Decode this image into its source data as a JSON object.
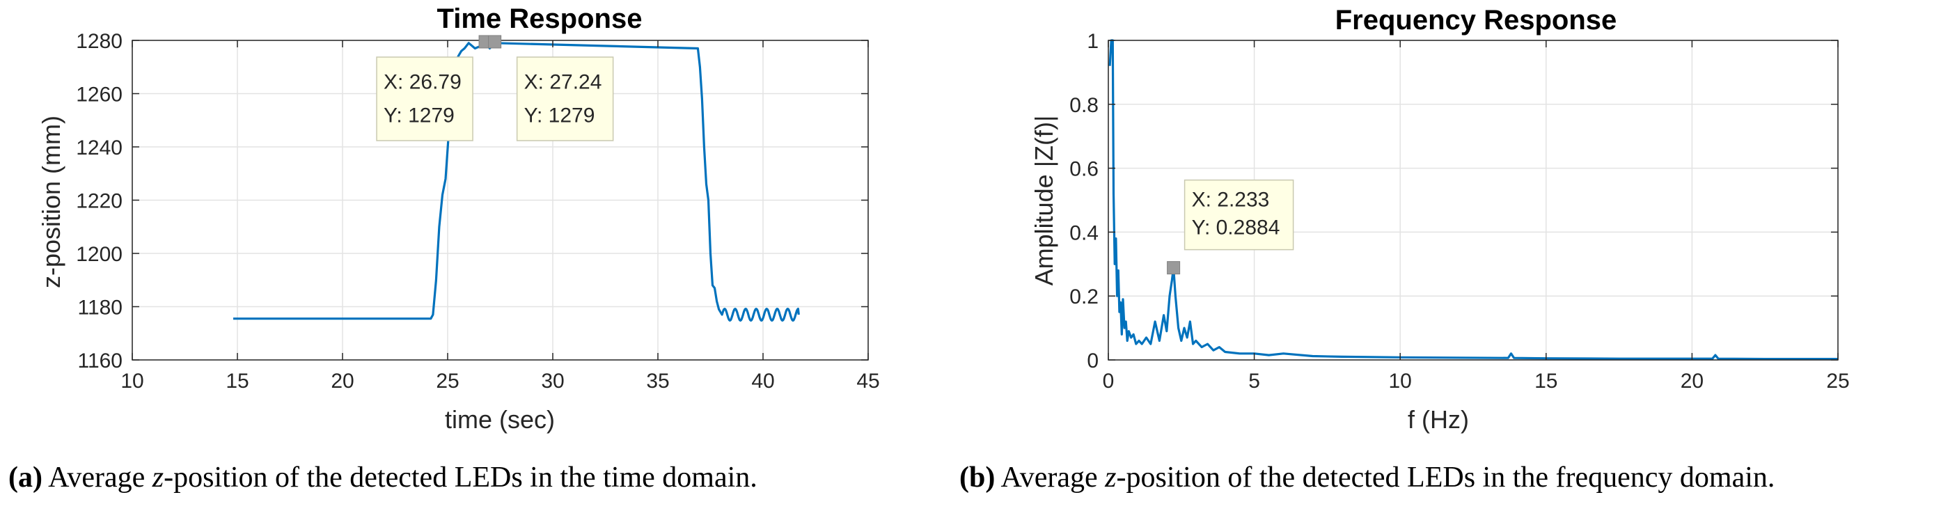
{
  "chart_data": [
    {
      "type": "line",
      "title": "Time Response",
      "xlabel": "time (sec)",
      "ylabel": "z-position (mm)",
      "xlim": [
        10,
        45
      ],
      "ylim": [
        1160,
        1280
      ],
      "xticks": [
        10,
        15,
        20,
        25,
        30,
        35,
        40,
        45
      ],
      "yticks": [
        1160,
        1180,
        1200,
        1220,
        1240,
        1260,
        1280
      ],
      "grid": true,
      "line_color": "#0072bd",
      "series": [
        {
          "name": "z-position",
          "x": [
            14.8,
            24.2,
            24.3,
            24.45,
            24.6,
            24.75,
            24.9,
            25.05,
            25.2,
            25.35,
            25.5,
            25.65,
            25.8,
            26.0,
            26.3,
            26.6,
            26.79,
            27.0,
            27.24,
            36.9,
            37.0,
            37.1,
            37.2,
            37.3,
            37.4,
            37.5,
            37.6,
            37.7,
            37.8,
            37.9,
            38.05,
            41.7
          ],
          "y": [
            1175.5,
            1175.5,
            1177,
            1190,
            1210,
            1222,
            1228,
            1245,
            1262,
            1270,
            1274,
            1276,
            1277,
            1279,
            1277,
            1278,
            1279,
            1277,
            1279,
            1277,
            1270,
            1258,
            1240,
            1226,
            1220,
            1200,
            1188,
            1187,
            1182,
            1179,
            1177,
            1177
          ]
        }
      ],
      "oscillation": [
        {
          "from": 25.8,
          "to": 36.9,
          "center": 1277,
          "amplitude": 1.2,
          "period": 0.35
        },
        {
          "from": 38.05,
          "to": 41.7,
          "center": 1177,
          "amplitude": 2.2,
          "period": 0.5
        }
      ],
      "datatips": [
        {
          "x": 26.79,
          "y": 1279,
          "x_label": "X: 26.79",
          "y_label": "Y: 1279"
        },
        {
          "x": 27.24,
          "y": 1279,
          "x_label": "X: 27.24",
          "y_label": "Y: 1279"
        }
      ]
    },
    {
      "type": "line",
      "title": "Frequency Response",
      "xlabel": "f (Hz)",
      "ylabel": "Amplitude |Z(f)|",
      "xlim": [
        0,
        25
      ],
      "ylim": [
        0,
        1
      ],
      "xticks": [
        0,
        5,
        10,
        15,
        20,
        25
      ],
      "yticks": [
        0,
        0.2,
        0.4,
        0.6,
        0.8,
        1
      ],
      "ytick_labels": [
        "0",
        "0.2",
        "0.4",
        "0.6",
        "0.8",
        "1"
      ],
      "grid": true,
      "line_color": "#0072bd",
      "series": [
        {
          "name": "|Z(f)|",
          "x": [
            0.05,
            0.1,
            0.15,
            0.18,
            0.22,
            0.26,
            0.3,
            0.34,
            0.38,
            0.42,
            0.46,
            0.5,
            0.55,
            0.6,
            0.65,
            0.7,
            0.78,
            0.86,
            0.95,
            1.05,
            1.15,
            1.3,
            1.45,
            1.6,
            1.75,
            1.9,
            2.0,
            2.1,
            2.18,
            2.233,
            2.3,
            2.4,
            2.5,
            2.6,
            2.7,
            2.8,
            2.9,
            3.0,
            3.2,
            3.4,
            3.6,
            3.8,
            4.0,
            4.5,
            5.0,
            5.5,
            6.0,
            7.0,
            8.0,
            10.0,
            12.0,
            13.7,
            13.8,
            13.9,
            15.0,
            17.5,
            20.0,
            20.7,
            20.8,
            20.9,
            22.5,
            25.0
          ],
          "y": [
            0.92,
            1.0,
            1.0,
            0.52,
            0.3,
            0.38,
            0.2,
            0.28,
            0.15,
            0.18,
            0.08,
            0.19,
            0.1,
            0.12,
            0.06,
            0.09,
            0.07,
            0.08,
            0.05,
            0.06,
            0.05,
            0.07,
            0.05,
            0.12,
            0.06,
            0.14,
            0.09,
            0.2,
            0.25,
            0.2884,
            0.2,
            0.1,
            0.06,
            0.1,
            0.07,
            0.12,
            0.05,
            0.06,
            0.04,
            0.05,
            0.03,
            0.04,
            0.025,
            0.02,
            0.02,
            0.015,
            0.02,
            0.012,
            0.01,
            0.008,
            0.007,
            0.006,
            0.02,
            0.006,
            0.005,
            0.004,
            0.004,
            0.004,
            0.015,
            0.004,
            0.003,
            0.003
          ]
        }
      ],
      "datatips": [
        {
          "x": 2.233,
          "y": 0.2884,
          "x_label": "X: 2.233",
          "y_label": "Y: 0.2884"
        }
      ]
    }
  ],
  "captions": [
    {
      "letter": "(a)",
      "pre": " Average ",
      "var": "z",
      "post": "-position of the detected LEDs in the time domain."
    },
    {
      "letter": "(b)",
      "pre": " Average ",
      "var": "z",
      "post": "-position of the detected LEDs in the frequency domain."
    }
  ]
}
